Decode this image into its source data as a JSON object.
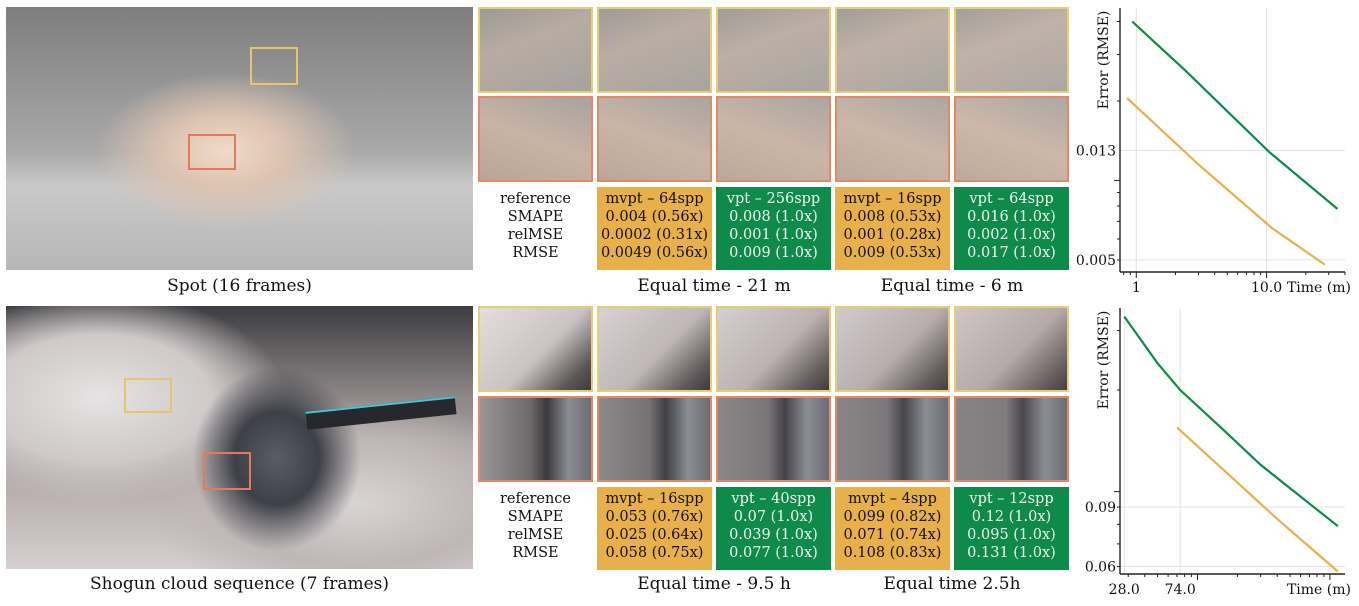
{
  "colors": {
    "ours": "#e8b04a",
    "baseline": "#0e8a4a",
    "crop_yellow": "#e8cc78",
    "crop_red": "#e08a6a"
  },
  "rows": [
    {
      "scene_caption": "Spot (16 frames)",
      "metric_labels": [
        "reference",
        "SMAPE",
        "relMSE",
        "RMSE"
      ],
      "columns": [
        {
          "kind": "ours",
          "title": "mvpt – 64spp",
          "values": [
            "0.004 (0.56x)",
            "0.0002 (0.31x)",
            "0.0049 (0.56x)"
          ]
        },
        {
          "kind": "base",
          "title": "vpt – 256spp",
          "values": [
            "0.008 (1.0x)",
            "0.001 (1.0x)",
            "0.009 (1.0x)"
          ]
        },
        {
          "kind": "ours",
          "title": "mvpt – 16spp",
          "values": [
            "0.008 (0.53x)",
            "0.001 (0.28x)",
            "0.009 (0.53x)"
          ]
        },
        {
          "kind": "base",
          "title": "vpt – 64spp",
          "values": [
            "0.016 (1.0x)",
            "0.002 (1.0x)",
            "0.017 (1.0x)"
          ]
        }
      ],
      "equal_time": [
        "Equal time - 21 m",
        "Equal time - 6 m"
      ]
    },
    {
      "scene_caption": "Shogun cloud sequence (7 frames)",
      "metric_labels": [
        "reference",
        "SMAPE",
        "relMSE",
        "RMSE"
      ],
      "columns": [
        {
          "kind": "ours",
          "title": "mvpt – 16spp",
          "values": [
            "0.053 (0.76x)",
            "0.025 (0.64x)",
            "0.058 (0.75x)"
          ]
        },
        {
          "kind": "base",
          "title": "vpt – 40spp",
          "values": [
            "0.07 (1.0x)",
            "0.039 (1.0x)",
            "0.077 (1.0x)"
          ]
        },
        {
          "kind": "ours",
          "title": "mvpt – 4spp",
          "values": [
            "0.099 (0.82x)",
            "0.071 (0.74x)",
            "0.108 (0.83x)"
          ]
        },
        {
          "kind": "base",
          "title": "vpt – 12spp",
          "values": [
            "0.12 (1.0x)",
            "0.095 (1.0x)",
            "0.131 (1.0x)"
          ]
        }
      ],
      "equal_time": [
        "Equal time - 9.5 h",
        "Equal time 2.5h"
      ]
    }
  ],
  "chart_data": [
    {
      "type": "line",
      "ylabel": "Error (RMSE)",
      "xlabel": "Time (m)",
      "xscale": "log",
      "yscale": "log",
      "xlim": [
        0.75,
        40
      ],
      "ylim": [
        0.0045,
        0.045
      ],
      "xticks": [
        {
          "v": 1,
          "label": "1"
        },
        {
          "v": 10,
          "label": "10.0"
        }
      ],
      "yticks": [
        {
          "v": 0.013,
          "label": "0.013"
        },
        {
          "v": 0.005,
          "label": "0.005"
        }
      ],
      "grid": true,
      "series": [
        {
          "color": "#0e8a4a",
          "points": [
            [
              0.93,
              0.04
            ],
            [
              2.4,
              0.026
            ],
            [
              10.5,
              0.0128
            ],
            [
              35,
              0.0078
            ]
          ]
        },
        {
          "color": "#e8b04a",
          "points": [
            [
              0.85,
              0.0205
            ],
            [
              3.0,
              0.0115
            ],
            [
              11.0,
              0.0066
            ],
            [
              28,
              0.0048
            ]
          ]
        }
      ]
    },
    {
      "type": "line",
      "ylabel": "Error (RMSE)",
      "xlabel": "Time (m)",
      "xscale": "log",
      "yscale": "log",
      "xlim": [
        26,
        1300
      ],
      "ylim": [
        0.057,
        0.35
      ],
      "xticks": [
        {
          "v": 28,
          "label": "28.0"
        },
        {
          "v": 74,
          "label": "74.0"
        }
      ],
      "yticks": [
        {
          "v": 0.09,
          "label": "0.09"
        },
        {
          "v": 0.06,
          "label": "0.06"
        }
      ],
      "grid": true,
      "series": [
        {
          "color": "#0e8a4a",
          "points": [
            [
              28,
              0.33
            ],
            [
              50,
              0.24
            ],
            [
              74,
              0.2
            ],
            [
              150,
              0.155
            ],
            [
              300,
              0.12
            ],
            [
              1150,
              0.079
            ]
          ]
        },
        {
          "color": "#e8b04a",
          "points": [
            [
              70,
              0.155
            ],
            [
              150,
              0.118
            ],
            [
              400,
              0.083
            ],
            [
              1150,
              0.058
            ]
          ]
        }
      ]
    }
  ]
}
